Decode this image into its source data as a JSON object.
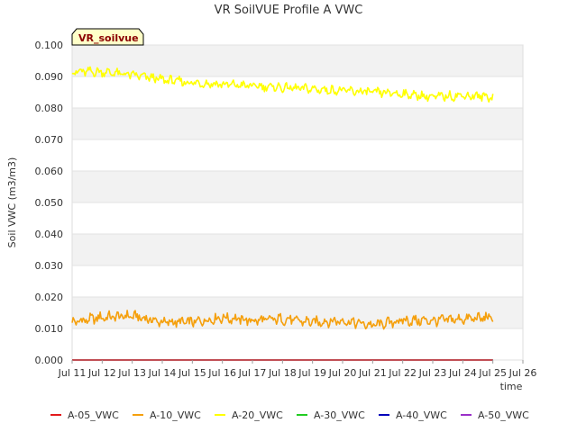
{
  "chart_data": {
    "type": "line",
    "title": "VR SoilVUE Profile A VWC",
    "xlabel": "time",
    "ylabel": "Soil VWC (m3/m3)",
    "ylim": [
      0.0,
      0.1
    ],
    "xlim": [
      "2024-07-11",
      "2024-07-26"
    ],
    "yticks": [
      "0.000",
      "0.010",
      "0.020",
      "0.030",
      "0.040",
      "0.050",
      "0.060",
      "0.070",
      "0.080",
      "0.090",
      "0.100"
    ],
    "xticks": [
      "Jul 11",
      "Jul 12",
      "Jul 13",
      "Jul 14",
      "Jul 15",
      "Jul 16",
      "Jul 17",
      "Jul 18",
      "Jul 19",
      "Jul 20",
      "Jul 21",
      "Jul 22",
      "Jul 23",
      "Jul 24",
      "Jul 25",
      "Jul 26"
    ],
    "x": [
      "2024-07-11",
      "2024-07-12",
      "2024-07-13",
      "2024-07-14",
      "2024-07-15",
      "2024-07-16",
      "2024-07-17",
      "2024-07-18",
      "2024-07-19",
      "2024-07-20",
      "2024-07-21",
      "2024-07-22",
      "2024-07-23",
      "2024-07-24",
      "2024-07-25"
    ],
    "grid": true,
    "legend_position": "bottom",
    "site_badge": "VR_soilvue",
    "series": [
      {
        "name": "A-05_VWC",
        "color": "#e31a1c",
        "values": [
          0,
          0,
          0,
          0,
          0,
          0,
          0,
          0,
          0,
          0,
          0,
          0,
          0,
          0,
          0
        ]
      },
      {
        "name": "A-10_VWC",
        "color": "#f5a00d",
        "values": [
          0.012,
          0.0135,
          0.014,
          0.012,
          0.012,
          0.0135,
          0.0125,
          0.013,
          0.012,
          0.0125,
          0.011,
          0.0125,
          0.0125,
          0.013,
          0.0135
        ]
      },
      {
        "name": "A-20_VWC",
        "color": "#ffff00",
        "values": [
          0.0915,
          0.0915,
          0.0905,
          0.089,
          0.088,
          0.0875,
          0.087,
          0.0865,
          0.086,
          0.0855,
          0.085,
          0.0845,
          0.0835,
          0.084,
          0.0835
        ]
      },
      {
        "name": "A-30_VWC",
        "color": "#22cc22",
        "values": [
          0,
          0,
          0,
          0,
          0,
          0,
          0,
          0,
          0,
          0,
          0,
          0,
          0,
          0,
          0
        ]
      },
      {
        "name": "A-40_VWC",
        "color": "#0000bb",
        "values": [
          0,
          0,
          0,
          0,
          0,
          0,
          0,
          0,
          0,
          0,
          0,
          0,
          0,
          0,
          0
        ]
      },
      {
        "name": "A-50_VWC",
        "color": "#9b30c8",
        "values": [
          0,
          0,
          0,
          0,
          0,
          0,
          0,
          0,
          0,
          0,
          0,
          0,
          0,
          0,
          0
        ]
      }
    ]
  }
}
